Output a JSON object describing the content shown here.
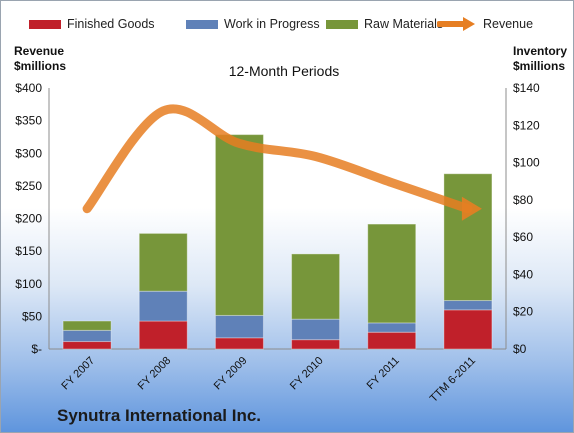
{
  "chart_data": {
    "type": "bar",
    "stacked": true,
    "title": "12-Month Periods",
    "categories": [
      "FY 2007",
      "FY 2008",
      "FY 2009",
      "FY 2010",
      "FY 2011",
      "TTM 6-2011"
    ],
    "y_left_label_line1": "Revenue",
    "y_left_label_line2": "$millions",
    "y_right_label_line1": "Inventory",
    "y_right_label_line2": "$millions",
    "y_left_ticks": [
      "$400",
      "$350",
      "$300",
      "$250",
      "$200",
      "$150",
      "$100",
      "$50",
      "$-"
    ],
    "y_right_ticks": [
      "$140",
      "$120",
      "$100",
      "$80",
      "$60",
      "$40",
      "$20",
      "$0"
    ],
    "ylim_left": [
      0,
      400
    ],
    "ylim_right": [
      0,
      140
    ],
    "series": [
      {
        "name": "Finished Goods",
        "axis": "right",
        "values": [
          4,
          15,
          6,
          5,
          9,
          21
        ],
        "color": "#c0202a"
      },
      {
        "name": "Work in Progress",
        "axis": "right",
        "values": [
          6,
          16,
          12,
          11,
          5,
          5
        ],
        "color": "#5f81b8"
      },
      {
        "name": "Raw Materials",
        "axis": "right",
        "values": [
          5,
          31,
          97,
          35,
          53,
          68
        ],
        "color": "#77963a"
      }
    ],
    "line_series": {
      "name": "Revenue",
      "axis": "left",
      "type": "line",
      "values": [
        215,
        365,
        315,
        295,
        255,
        215
      ],
      "color": "#e67e22"
    },
    "legend_position": "top",
    "grid": false
  },
  "company_name": "Synutra International Inc."
}
